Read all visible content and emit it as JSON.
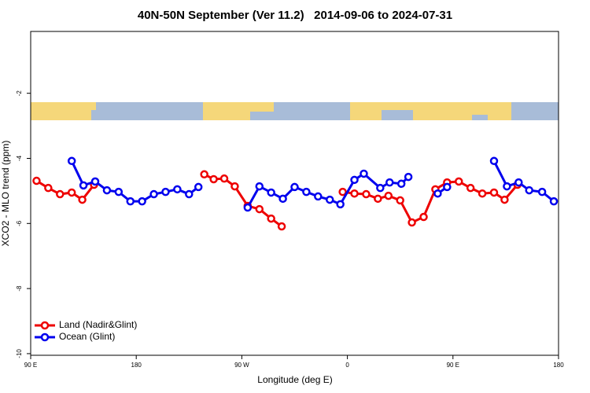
{
  "chart_data": {
    "type": "line",
    "title": "40N-50N September (Ver 11.2)   2014-09-06 to 2024-07-31",
    "xlabel": "Longitude (deg E)",
    "ylabel": "XCO2 - MLO trend (ppm)",
    "xlim": [
      90,
      540
    ],
    "xticks": [
      {
        "value": 90,
        "label": "90 E"
      },
      {
        "value": 180,
        "label": "180"
      },
      {
        "value": 270,
        "label": "90 W"
      },
      {
        "value": 360,
        "label": "0"
      },
      {
        "value": 450,
        "label": "90 E"
      },
      {
        "value": 540,
        "label": "180"
      }
    ],
    "ylim": [
      -10.05,
      -0.1
    ],
    "yticks": [
      -10,
      -8,
      -6,
      -4,
      -2
    ],
    "legend": "bottom-left",
    "series": [
      {
        "name": "Land (Nadir&Glint)",
        "color": "#ee0000",
        "x": [
          95,
          105,
          115,
          125,
          134,
          144,
          null,
          238,
          246,
          255,
          264,
          275,
          285,
          295,
          304,
          null,
          356,
          366,
          376,
          386,
          395,
          405,
          415,
          425,
          435,
          445,
          455,
          465,
          475,
          485,
          494,
          505
        ],
        "values": [
          -4.69,
          -4.91,
          -5.1,
          -5.05,
          -5.27,
          -4.81,
          null,
          -4.49,
          -4.64,
          -4.62,
          -4.86,
          -5.46,
          -5.56,
          -5.85,
          -6.09,
          null,
          -5.03,
          -5.08,
          -5.1,
          -5.24,
          -5.15,
          -5.29,
          -5.97,
          -5.8,
          -4.95,
          -4.74,
          -4.71,
          -4.91,
          -5.08,
          -5.05,
          -5.27,
          -4.81
        ]
      },
      {
        "name": "Ocean (Glint)",
        "color": "#0000ee",
        "x": [
          125,
          135,
          145,
          155,
          165,
          175,
          185,
          195,
          205,
          215,
          225,
          233,
          null,
          275,
          285,
          295,
          305,
          315,
          325,
          335,
          345,
          354,
          366,
          374,
          388,
          396,
          406,
          412,
          null,
          437,
          445,
          null,
          485,
          496,
          506,
          515,
          526,
          536
        ],
        "values": [
          -4.08,
          -4.83,
          -4.71,
          -4.98,
          -5.03,
          -5.32,
          -5.32,
          -5.1,
          -5.03,
          -4.95,
          -5.1,
          -4.88,
          null,
          -5.51,
          -4.86,
          -5.05,
          -5.24,
          -4.88,
          -5.03,
          -5.17,
          -5.27,
          -5.41,
          -4.66,
          -4.47,
          -4.91,
          -4.74,
          -4.78,
          -4.57,
          null,
          -5.08,
          -4.88,
          null,
          -4.08,
          -4.86,
          -4.74,
          -4.98,
          -5.03,
          -5.32
        ]
      }
    ]
  }
}
